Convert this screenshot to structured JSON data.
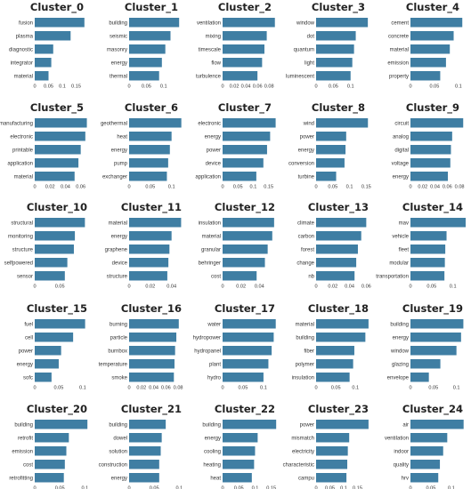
{
  "chart_data": [
    {
      "type": "bar",
      "orientation": "horizontal",
      "title": "Cluster_0",
      "categories": [
        "fusion",
        "plasma",
        "diagnostic",
        "integrator",
        "material"
      ],
      "values": [
        0.18,
        0.13,
        0.067,
        0.06,
        0.05
      ],
      "xlim": [
        0,
        0.2
      ],
      "xticks": [
        "0",
        "0.05",
        "0.1",
        "0.15"
      ],
      "tick_values": [
        0,
        0.05,
        0.1,
        0.15
      ]
    },
    {
      "type": "bar",
      "orientation": "horizontal",
      "title": "Cluster_1",
      "categories": [
        "building",
        "seismic",
        "masonry",
        "energy",
        "thermal"
      ],
      "values": [
        0.145,
        0.12,
        0.105,
        0.095,
        0.087
      ],
      "xlim": [
        0,
        0.16
      ],
      "xticks": [
        "0",
        "0.05",
        "0.1"
      ],
      "tick_values": [
        0,
        0.05,
        0.1
      ]
    },
    {
      "type": "bar",
      "orientation": "horizontal",
      "title": "Cluster_2",
      "categories": [
        "ventilation",
        "mixing",
        "timescale",
        "flow",
        "turbulence"
      ],
      "values": [
        0.09,
        0.076,
        0.072,
        0.068,
        0.06
      ],
      "xlim": [
        0,
        0.095
      ],
      "xticks": [
        "0",
        "0.02",
        "0.04",
        "0.06",
        "0.08"
      ],
      "tick_values": [
        0,
        0.02,
        0.04,
        0.06,
        0.08
      ]
    },
    {
      "type": "bar",
      "orientation": "horizontal",
      "title": "Cluster_3",
      "categories": [
        "window",
        "dot",
        "quantum",
        "light",
        "luminescent"
      ],
      "values": [
        0.15,
        0.115,
        0.11,
        0.105,
        0.1
      ],
      "xlim": [
        0,
        0.16
      ],
      "xticks": [
        "0",
        "0.05",
        "0.1"
      ],
      "tick_values": [
        0,
        0.05,
        0.1
      ]
    },
    {
      "type": "bar",
      "orientation": "horizontal",
      "title": "Cluster_4",
      "categories": [
        "cement",
        "concrete",
        "material",
        "emission",
        "property"
      ],
      "values": [
        0.108,
        0.09,
        0.082,
        0.074,
        0.062
      ],
      "xlim": [
        0,
        0.115
      ],
      "xticks": [
        "0",
        "0.05",
        "0.1"
      ],
      "tick_values": [
        0,
        0.05,
        0.1
      ]
    },
    {
      "type": "bar",
      "orientation": "horizontal",
      "title": "Cluster_5",
      "categories": [
        "manufacturing",
        "electronic",
        "printable",
        "application",
        "material"
      ],
      "values": [
        0.068,
        0.066,
        0.06,
        0.057,
        0.052
      ],
      "xlim": [
        0,
        0.072
      ],
      "xticks": [
        "0",
        "0.02",
        "0.04",
        "0.06"
      ],
      "tick_values": [
        0,
        0.02,
        0.04,
        0.06
      ]
    },
    {
      "type": "bar",
      "orientation": "horizontal",
      "title": "Cluster_6",
      "categories": [
        "geothermal",
        "heat",
        "energy",
        "pump",
        "exchanger"
      ],
      "values": [
        0.123,
        0.1,
        0.096,
        0.092,
        0.089
      ],
      "xlim": [
        0,
        0.13
      ],
      "xticks": [
        "0",
        "0.05",
        "0.1"
      ],
      "tick_values": [
        0,
        0.05,
        0.1
      ]
    },
    {
      "type": "bar",
      "orientation": "horizontal",
      "title": "Cluster_7",
      "categories": [
        "electronic",
        "energy",
        "power",
        "device",
        "application"
      ],
      "values": [
        0.173,
        0.155,
        0.145,
        0.133,
        0.11
      ],
      "xlim": [
        0,
        0.18
      ],
      "xticks": [
        "0",
        "0.05",
        "0.1",
        "0.15"
      ],
      "tick_values": [
        0,
        0.05,
        0.1,
        0.15
      ]
    },
    {
      "type": "bar",
      "orientation": "horizontal",
      "title": "Cluster_8",
      "categories": [
        "wind",
        "power",
        "energy",
        "conversion",
        "turbine"
      ],
      "values": [
        0.155,
        0.09,
        0.088,
        0.085,
        0.06
      ],
      "xlim": [
        0,
        0.165
      ],
      "xticks": [
        "0",
        "0.05",
        "0.1",
        "0.15"
      ],
      "tick_values": [
        0,
        0.05,
        0.1,
        0.15
      ]
    },
    {
      "type": "bar",
      "orientation": "horizontal",
      "title": "Cluster_9",
      "categories": [
        "circuit",
        "analog",
        "digital",
        "voltage",
        "energy"
      ],
      "values": [
        0.086,
        0.068,
        0.066,
        0.065,
        0.061
      ],
      "xlim": [
        0,
        0.09
      ],
      "xticks": [
        "0",
        "0.02",
        "0.04",
        "0.06",
        "0.08"
      ],
      "tick_values": [
        0,
        0.02,
        0.04,
        0.06,
        0.08
      ]
    },
    {
      "type": "bar",
      "orientation": "horizontal",
      "title": "Cluster_10",
      "categories": [
        "structural",
        "monitoring",
        "structure",
        "selfpowered",
        "sensor"
      ],
      "values": [
        0.1,
        0.08,
        0.078,
        0.065,
        0.06
      ],
      "xlim": [
        0,
        0.11
      ],
      "xticks": [
        "0",
        "0.05"
      ],
      "tick_values": [
        0,
        0.05
      ]
    },
    {
      "type": "bar",
      "orientation": "horizontal",
      "title": "Cluster_11",
      "categories": [
        "material",
        "energy",
        "graphene",
        "device",
        "structure"
      ],
      "values": [
        0.049,
        0.04,
        0.038,
        0.037,
        0.036
      ],
      "xlim": [
        0,
        0.052
      ],
      "xticks": [
        "0",
        "0.02",
        "0.04"
      ],
      "tick_values": [
        0,
        0.02,
        0.04
      ]
    },
    {
      "type": "bar",
      "orientation": "horizontal",
      "title": "Cluster_12",
      "categories": [
        "insulation",
        "material",
        "granular",
        "behringer",
        "cost"
      ],
      "values": [
        0.056,
        0.054,
        0.049,
        0.046,
        0.037
      ],
      "xlim": [
        0,
        0.06
      ],
      "xticks": [
        "0",
        "0.02",
        "0.04"
      ],
      "tick_values": [
        0,
        0.02,
        0.04
      ]
    },
    {
      "type": "bar",
      "orientation": "horizontal",
      "title": "Cluster_13",
      "categories": [
        "climate",
        "carbon",
        "forest",
        "change",
        "nb"
      ],
      "values": [
        0.06,
        0.054,
        0.05,
        0.048,
        0.046
      ],
      "xlim": [
        0,
        0.066
      ],
      "xticks": [
        "0",
        "0.02",
        "0.04",
        "0.06"
      ],
      "tick_values": [
        0,
        0.02,
        0.04,
        0.06
      ]
    },
    {
      "type": "bar",
      "orientation": "horizontal",
      "title": "Cluster_14",
      "categories": [
        "mav",
        "vehicle",
        "fleet",
        "modular",
        "transportation"
      ],
      "values": [
        0.13,
        0.085,
        0.082,
        0.081,
        0.08
      ],
      "xlim": [
        0,
        0.13
      ],
      "xticks": [
        "0",
        "0.05",
        "0.1"
      ],
      "tick_values": [
        0,
        0.05,
        0.1
      ]
    },
    {
      "type": "bar",
      "orientation": "horizontal",
      "title": "Cluster_15",
      "categories": [
        "fuel",
        "cell",
        "power",
        "energy",
        "sofc"
      ],
      "values": [
        0.105,
        0.08,
        0.055,
        0.05,
        0.035
      ],
      "xlim": [
        0,
        0.115
      ],
      "xticks": [
        "0",
        "0.05",
        "0.1"
      ],
      "tick_values": [
        0,
        0.05,
        0.1
      ]
    },
    {
      "type": "bar",
      "orientation": "horizontal",
      "title": "Cluster_16",
      "categories": [
        "burning",
        "particle",
        "burnbox",
        "temperature",
        "smoke"
      ],
      "values": [
        0.081,
        0.077,
        0.075,
        0.074,
        0.073
      ],
      "xlim": [
        0,
        0.09
      ],
      "xticks": [
        "0",
        "0.02",
        "0.04",
        "0.06",
        "0.08"
      ],
      "tick_values": [
        0,
        0.02,
        0.04,
        0.06,
        0.08
      ]
    },
    {
      "type": "bar",
      "orientation": "horizontal",
      "title": "Cluster_17",
      "categories": [
        "water",
        "hydropower",
        "hydropanel",
        "plant",
        "hydro"
      ],
      "values": [
        0.13,
        0.125,
        0.12,
        0.112,
        0.1
      ],
      "xlim": [
        0,
        0.135
      ],
      "xticks": [
        "0",
        "0.05",
        "0.1"
      ],
      "tick_values": [
        0,
        0.05,
        0.1
      ]
    },
    {
      "type": "bar",
      "orientation": "horizontal",
      "title": "Cluster_18",
      "categories": [
        "material",
        "building",
        "fiber",
        "polymer",
        "insulation"
      ],
      "values": [
        0.133,
        0.125,
        0.097,
        0.094,
        0.085
      ],
      "xlim": [
        0,
        0.14
      ],
      "xticks": [
        "0",
        "0.05",
        "0.1"
      ],
      "tick_values": [
        0,
        0.05,
        0.1
      ]
    },
    {
      "type": "bar",
      "orientation": "horizontal",
      "title": "Cluster_19",
      "categories": [
        "building",
        "energy",
        "window",
        "glazing",
        "envelope"
      ],
      "values": [
        0.115,
        0.11,
        0.1,
        0.065,
        0.04
      ],
      "xlim": [
        0,
        0.12
      ],
      "xticks": [
        "0",
        "0.05",
        "0.1"
      ],
      "tick_values": [
        0,
        0.05,
        0.1
      ]
    },
    {
      "type": "bar",
      "orientation": "horizontal",
      "title": "Cluster_20",
      "categories": [
        "building",
        "retrofit",
        "emission",
        "cost",
        "retrofitting"
      ],
      "values": [
        0.105,
        0.068,
        0.063,
        0.06,
        0.058
      ],
      "xlim": [
        0,
        0.11
      ],
      "xticks": [
        "0",
        "0.05",
        "0.1"
      ],
      "tick_values": [
        0,
        0.05,
        0.1
      ]
    },
    {
      "type": "bar",
      "orientation": "horizontal",
      "title": "Cluster_21",
      "categories": [
        "building",
        "dowel",
        "solution",
        "construction",
        "energy"
      ],
      "values": [
        0.073,
        0.065,
        0.063,
        0.06,
        0.06
      ],
      "xlim": [
        0,
        0.11
      ],
      "xticks": [
        "0",
        "0.05",
        "0.1"
      ],
      "tick_values": [
        0,
        0.05,
        0.1
      ]
    },
    {
      "type": "bar",
      "orientation": "horizontal",
      "title": "Cluster_22",
      "categories": [
        "building",
        "energy",
        "cooling",
        "heating",
        "heat"
      ],
      "values": [
        0.165,
        0.108,
        0.1,
        0.097,
        0.09
      ],
      "xlim": [
        0,
        0.17
      ],
      "xticks": [
        "0",
        "0.05",
        "0.1",
        "0.15"
      ],
      "tick_values": [
        0,
        0.05,
        0.1,
        0.15
      ]
    },
    {
      "type": "bar",
      "orientation": "horizontal",
      "title": "Cluster_23",
      "categories": [
        "power",
        "mismatch",
        "electricity",
        "characteristic",
        "campu"
      ],
      "values": [
        0.19,
        0.12,
        0.115,
        0.113,
        0.11
      ],
      "xlim": [
        0,
        0.2
      ],
      "xticks": [
        "0",
        "0.05",
        "0.1",
        "0.15"
      ],
      "tick_values": [
        0,
        0.05,
        0.1,
        0.15
      ]
    },
    {
      "type": "bar",
      "orientation": "horizontal",
      "title": "Cluster_24",
      "categories": [
        "air",
        "ventilation",
        "indoor",
        "quality",
        "hrv"
      ],
      "values": [
        0.13,
        0.09,
        0.08,
        0.072,
        0.068
      ],
      "xlim": [
        0,
        0.135
      ],
      "xticks": [
        "0",
        "0.05",
        "0.1"
      ],
      "tick_values": [
        0,
        0.05,
        0.1
      ]
    }
  ]
}
